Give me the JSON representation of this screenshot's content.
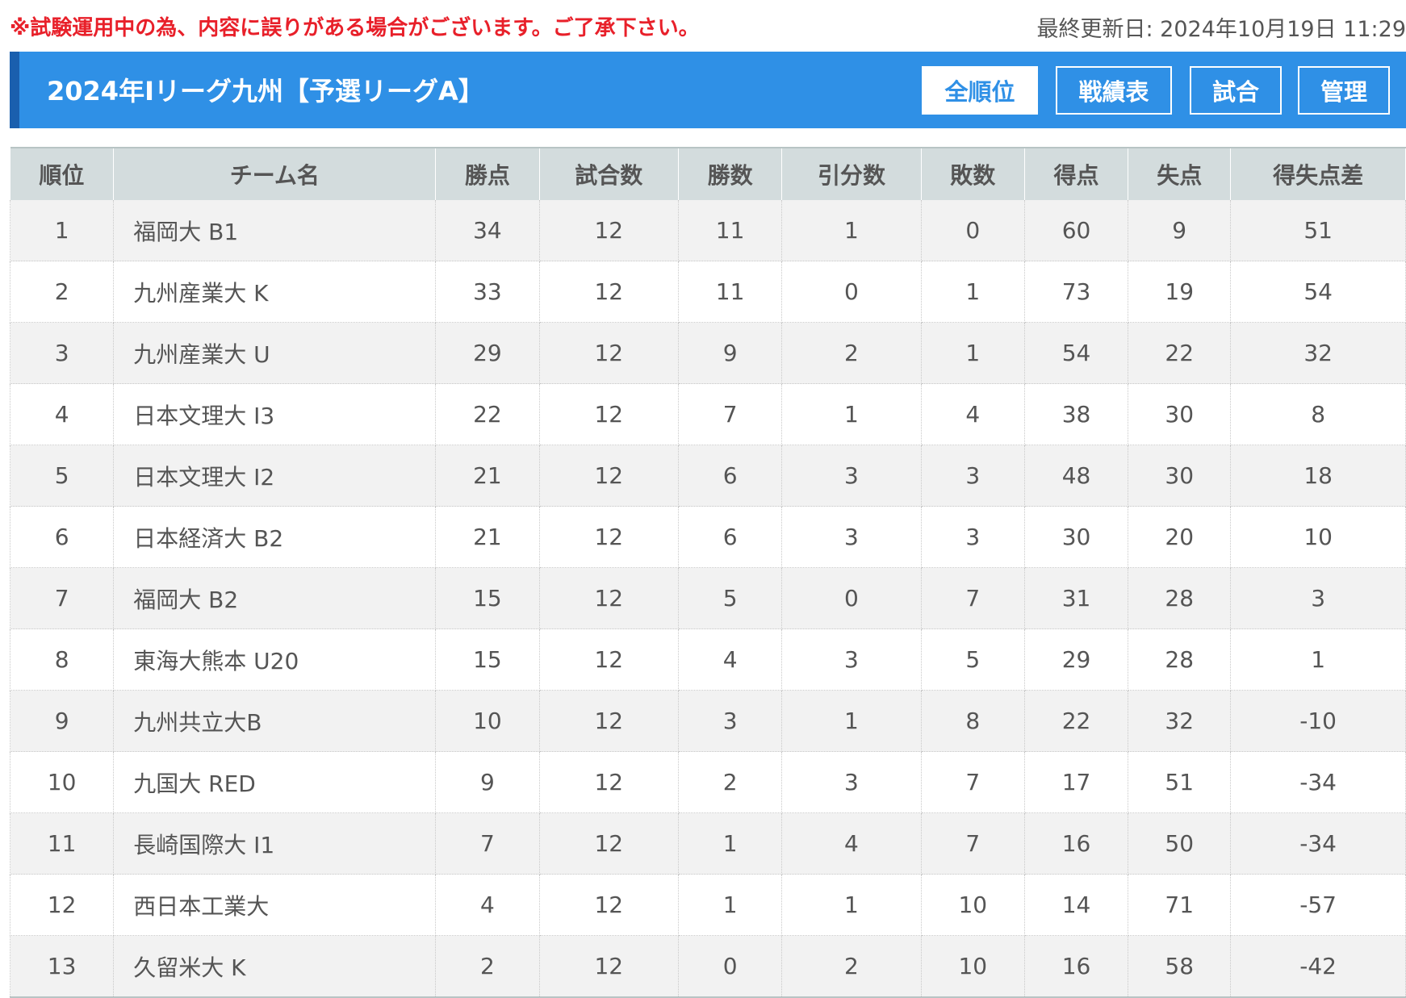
{
  "notice": "※試験運用中の為、内容に誤りがある場合がございます。ご了承下さい。",
  "updated": "最終更新日: 2024年10月19日 11:29",
  "header": {
    "title": "2024年Iリーグ九州【予選リーグA】",
    "buttons": [
      "全順位",
      "戦績表",
      "試合",
      "管理"
    ]
  },
  "colors": {
    "accent": "#2f90e6",
    "accent_dark": "#1a5fae",
    "notice": "#e8202a"
  },
  "table": {
    "columns": [
      "順位",
      "チーム名",
      "勝点",
      "試合数",
      "勝数",
      "引分数",
      "敗数",
      "得点",
      "失点",
      "得失点差"
    ],
    "rows": [
      [
        "1",
        "福岡大 B1",
        "34",
        "12",
        "11",
        "1",
        "0",
        "60",
        "9",
        "51"
      ],
      [
        "2",
        "九州産業大 K",
        "33",
        "12",
        "11",
        "0",
        "1",
        "73",
        "19",
        "54"
      ],
      [
        "3",
        "九州産業大 U",
        "29",
        "12",
        "9",
        "2",
        "1",
        "54",
        "22",
        "32"
      ],
      [
        "4",
        "日本文理大 I3",
        "22",
        "12",
        "7",
        "1",
        "4",
        "38",
        "30",
        "8"
      ],
      [
        "5",
        "日本文理大 I2",
        "21",
        "12",
        "6",
        "3",
        "3",
        "48",
        "30",
        "18"
      ],
      [
        "6",
        "日本経済大 B2",
        "21",
        "12",
        "6",
        "3",
        "3",
        "30",
        "20",
        "10"
      ],
      [
        "7",
        "福岡大 B2",
        "15",
        "12",
        "5",
        "0",
        "7",
        "31",
        "28",
        "3"
      ],
      [
        "8",
        "東海大熊本 U20",
        "15",
        "12",
        "4",
        "3",
        "5",
        "29",
        "28",
        "1"
      ],
      [
        "9",
        "九州共立大B",
        "10",
        "12",
        "3",
        "1",
        "8",
        "22",
        "32",
        "-10"
      ],
      [
        "10",
        "九国大 RED",
        "9",
        "12",
        "2",
        "3",
        "7",
        "17",
        "51",
        "-34"
      ],
      [
        "11",
        "長崎国際大 I1",
        "7",
        "12",
        "1",
        "4",
        "7",
        "16",
        "50",
        "-34"
      ],
      [
        "12",
        "西日本工業大",
        "4",
        "12",
        "1",
        "1",
        "10",
        "14",
        "71",
        "-57"
      ],
      [
        "13",
        "久留米大 K",
        "2",
        "12",
        "0",
        "2",
        "10",
        "16",
        "58",
        "-42"
      ]
    ]
  }
}
